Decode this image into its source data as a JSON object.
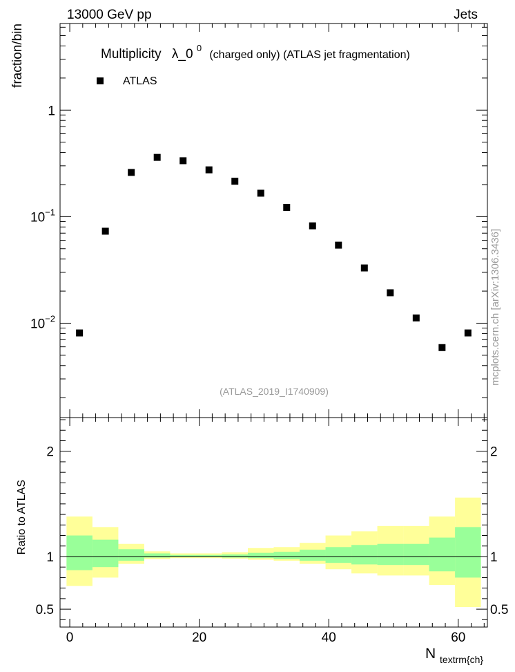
{
  "header": {
    "energy_label": "13000 GeV pp",
    "category_label": "Jets"
  },
  "title": {
    "prefix": "Multiplicity",
    "symbol": "λ_0",
    "superscript": "0",
    "suffix": "(charged only) (ATLAS jet fragmentation)"
  },
  "watermark": "(ATLAS_2019_I1740909)",
  "side_label": "mcplots.cern.ch [arXiv:1306.3436]",
  "chart_data": [
    {
      "type": "scatter",
      "panel": "main",
      "ylabel": "fraction/bin",
      "yscale": "log",
      "ylim": [
        0.0013,
        6.5
      ],
      "xlim": [
        -1.5,
        64.5
      ],
      "y_tick_labels": [
        {
          "base": "1",
          "exp": ""
        },
        {
          "base": "10",
          "exp": "−1"
        },
        {
          "base": "10",
          "exp": "−2"
        }
      ],
      "legend": {
        "position": "top-left",
        "entries": [
          "ATLAS"
        ]
      },
      "series": [
        {
          "name": "ATLAS",
          "color": "#000000",
          "x": [
            1.5,
            5.5,
            9.5,
            13.5,
            17.5,
            21.5,
            25.5,
            29.5,
            33.5,
            37.5,
            41.5,
            45.5,
            49.5,
            53.5,
            57.5,
            61.5
          ],
          "y": [
            0.0081,
            0.073,
            0.26,
            0.36,
            0.335,
            0.275,
            0.215,
            0.166,
            0.122,
            0.082,
            0.054,
            0.033,
            0.0193,
            0.0112,
            0.0059,
            0.0081
          ]
        }
      ]
    },
    {
      "type": "area",
      "panel": "ratio",
      "ylabel": "Ratio to ATLAS",
      "xlabel": "N",
      "xlabel_subscript": "textrm{ch}",
      "ylim": [
        0.33,
        2.32
      ],
      "xlim": [
        -1.5,
        64.5
      ],
      "x_ticks": [
        0,
        20,
        40,
        60
      ],
      "y_ticks": [
        0.5,
        1,
        2
      ],
      "reference_line": 1,
      "bins": [
        [
          -0.5,
          3.5
        ],
        [
          3.5,
          7.5
        ],
        [
          7.5,
          11.5
        ],
        [
          11.5,
          15.5
        ],
        [
          15.5,
          19.5
        ],
        [
          19.5,
          23.5
        ],
        [
          23.5,
          27.5
        ],
        [
          27.5,
          31.5
        ],
        [
          31.5,
          35.5
        ],
        [
          35.5,
          39.5
        ],
        [
          39.5,
          43.5
        ],
        [
          43.5,
          47.5
        ],
        [
          47.5,
          51.5
        ],
        [
          51.5,
          55.5
        ],
        [
          55.5,
          59.5
        ],
        [
          59.5,
          63.5
        ]
      ],
      "bands": [
        {
          "color": "#ffff99",
          "lower": [
            0.72,
            0.8,
            0.93,
            0.975,
            0.985,
            0.985,
            0.98,
            0.97,
            0.96,
            0.93,
            0.88,
            0.84,
            0.82,
            0.82,
            0.73,
            0.52
          ],
          "upper": [
            1.38,
            1.28,
            1.12,
            1.05,
            1.03,
            1.03,
            1.04,
            1.08,
            1.09,
            1.13,
            1.2,
            1.24,
            1.29,
            1.29,
            1.38,
            1.56
          ]
        },
        {
          "color": "#99ff99",
          "lower": [
            0.87,
            0.9,
            0.96,
            0.99,
            0.995,
            0.995,
            0.99,
            0.985,
            0.975,
            0.96,
            0.94,
            0.925,
            0.92,
            0.92,
            0.86,
            0.8
          ],
          "upper": [
            1.2,
            1.16,
            1.07,
            1.03,
            1.015,
            1.015,
            1.02,
            1.035,
            1.045,
            1.065,
            1.09,
            1.11,
            1.12,
            1.12,
            1.18,
            1.28
          ]
        }
      ]
    }
  ]
}
